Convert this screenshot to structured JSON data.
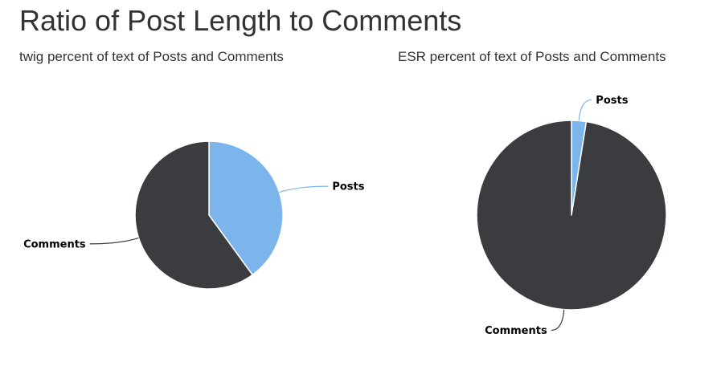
{
  "page": {
    "title": "Ratio of Post Length to Comments"
  },
  "chart_data": [
    {
      "type": "pie",
      "title": "twig percent of text of Posts and Comments",
      "slices": [
        {
          "label": "Posts",
          "value": 40,
          "color": "#7cb5ec"
        },
        {
          "label": "Comments",
          "value": 60,
          "color": "#3b3c40"
        }
      ]
    },
    {
      "type": "pie",
      "title": "ESR percent of text of Posts and Comments",
      "slices": [
        {
          "label": "Posts",
          "value": 2.5,
          "color": "#7cb5ec"
        },
        {
          "label": "Comments",
          "value": 97.5,
          "color": "#3b3c40"
        }
      ]
    }
  ]
}
